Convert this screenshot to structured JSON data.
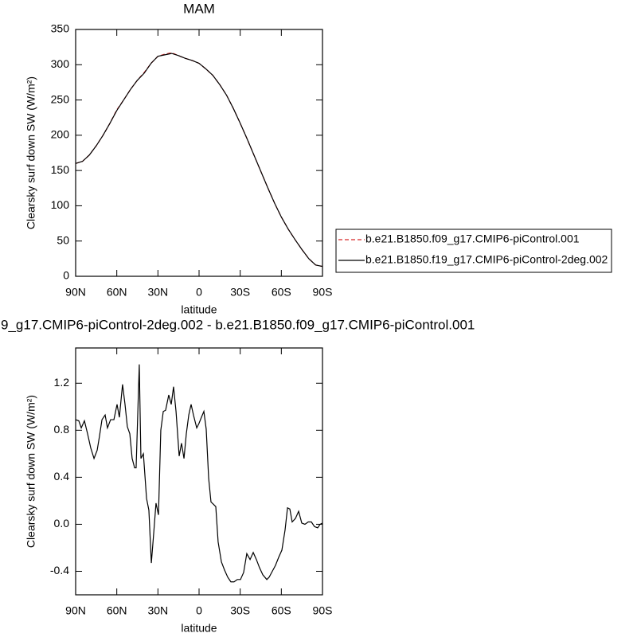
{
  "chart_data": [
    {
      "type": "line",
      "title": "MAM",
      "xlabel": "latitude",
      "ylabel": "Clearsky surf down SW (W/m²)",
      "x": [
        90,
        85,
        80,
        75,
        70,
        65,
        60,
        55,
        50,
        45,
        40,
        35,
        30,
        25,
        20,
        15,
        10,
        5,
        0,
        -5,
        -10,
        -15,
        -20,
        -25,
        -30,
        -35,
        -40,
        -45,
        -50,
        -55,
        -60,
        -65,
        -70,
        -75,
        -80,
        -85,
        -90
      ],
      "series": [
        {
          "name": "b.e21.B1850.f09_g17.CMIP6-piControl.001",
          "color": "#d62728",
          "dash": true,
          "values": [
            160,
            163,
            172,
            185,
            200,
            217,
            236,
            250,
            265,
            278,
            289,
            302,
            312,
            315,
            317,
            313,
            309,
            306,
            302,
            294,
            285,
            272,
            257,
            238,
            217,
            195,
            172,
            149,
            126,
            104,
            84,
            67,
            52,
            38,
            25,
            16,
            14
          ]
        },
        {
          "name": "b.e21.B1850.f19_g17.CMIP6-piControl-2deg.002",
          "color": "#000000",
          "dash": false,
          "values": [
            160,
            163,
            172,
            185,
            200,
            217,
            235,
            250,
            265,
            278,
            288,
            302,
            312,
            314,
            316,
            313,
            309,
            306,
            302,
            294,
            285,
            272,
            257,
            238,
            217,
            195,
            172,
            149,
            126,
            104,
            84,
            67,
            52,
            38,
            25,
            16,
            14
          ]
        }
      ],
      "xlim": [
        90,
        -90
      ],
      "xticks": [
        {
          "value": 90,
          "label": "90N"
        },
        {
          "value": 60,
          "label": "60N"
        },
        {
          "value": 30,
          "label": "30N"
        },
        0,
        {
          "value": -30,
          "label": "30S"
        },
        {
          "value": -60,
          "label": "60S"
        },
        {
          "value": -90,
          "label": "90S"
        }
      ],
      "ylim": [
        0,
        350
      ],
      "yticks": [
        0,
        50,
        100,
        150,
        200,
        250,
        300,
        350
      ],
      "legend": "right"
    },
    {
      "type": "line",
      "title": "9_g17.CMIP6-piControl-2deg.002 - b.e21.B1850.f09_g17.CMIP6-piControl.001",
      "xlabel": "latitude",
      "ylabel": "Clearsky surf down SW (W/m²)",
      "x": [
        90,
        87.7,
        85.9,
        83.6,
        81.3,
        79.0,
        76.6,
        74.3,
        72.6,
        70.8,
        68.5,
        66.8,
        64.5,
        62.1,
        59.8,
        58.1,
        55.8,
        54.0,
        52.3,
        50.5,
        48.8,
        47.0,
        45.9,
        44.7,
        43.6,
        42.4,
        40.6,
        38.3,
        36.6,
        34.8,
        33.1,
        31.4,
        29.6,
        27.9,
        26.1,
        24.4,
        22.1,
        20.3,
        18.6,
        16.8,
        14.5,
        12.8,
        11.0,
        9.3,
        7.5,
        5.8,
        4.1,
        1.7,
        0,
        -1.7,
        -3.5,
        -5.2,
        -7.0,
        -8.7,
        -10.5,
        -12.2,
        -13.9,
        -16.3,
        -18.6,
        -20.9,
        -23.2,
        -25.5,
        -27.9,
        -30.2,
        -32.5,
        -34.8,
        -37.2,
        -39.5,
        -41.8,
        -44.1,
        -46.5,
        -49.4,
        -51.1,
        -53.4,
        -55.7,
        -58.1,
        -60.4,
        -62.7,
        -64.5,
        -66.2,
        -67.9,
        -70.3,
        -72.6,
        -74.9,
        -77.2,
        -79.6,
        -81.9,
        -84.2,
        -86.5,
        -88.3,
        -90
      ],
      "series": [
        {
          "color": "#000000",
          "dash": false,
          "values": [
            0.89,
            0.88,
            0.82,
            0.88,
            0.77,
            0.65,
            0.56,
            0.63,
            0.75,
            0.89,
            0.93,
            0.82,
            0.89,
            0.89,
            1.02,
            0.91,
            1.19,
            1.02,
            0.83,
            0.77,
            0.56,
            0.48,
            0.48,
            0.94,
            1.36,
            0.56,
            0.6,
            0.22,
            0.12,
            -0.33,
            -0.08,
            0.18,
            0.08,
            0.8,
            0.96,
            0.97,
            1.1,
            1.02,
            1.17,
            0.96,
            0.58,
            0.69,
            0.56,
            0.77,
            0.93,
            1.02,
            0.93,
            0.82,
            0.86,
            0.91,
            0.96,
            0.81,
            0.39,
            0.19,
            0.17,
            0.15,
            -0.15,
            -0.32,
            -0.39,
            -0.45,
            -0.49,
            -0.49,
            -0.47,
            -0.47,
            -0.41,
            -0.25,
            -0.3,
            -0.24,
            -0.3,
            -0.37,
            -0.43,
            -0.47,
            -0.45,
            -0.4,
            -0.35,
            -0.28,
            -0.22,
            -0.05,
            0.14,
            0.13,
            0.02,
            0.05,
            0.11,
            0.01,
            0.0,
            0.02,
            0.02,
            -0.02,
            -0.03,
            0.0,
            0.01
          ]
        }
      ],
      "xlim": [
        90,
        -90
      ],
      "xticks": [
        {
          "value": 90,
          "label": "90N"
        },
        {
          "value": 60,
          "label": "60N"
        },
        {
          "value": 30,
          "label": "30N"
        },
        0,
        {
          "value": -30,
          "label": "30S"
        },
        {
          "value": -60,
          "label": "60S"
        },
        {
          "value": -90,
          "label": "90S"
        }
      ],
      "ylim": [
        -0.6,
        1.5
      ],
      "yticks": [
        -0.4,
        {
          "value": 0,
          "label": "0.0"
        },
        0.4,
        0.8,
        1.2
      ]
    }
  ]
}
